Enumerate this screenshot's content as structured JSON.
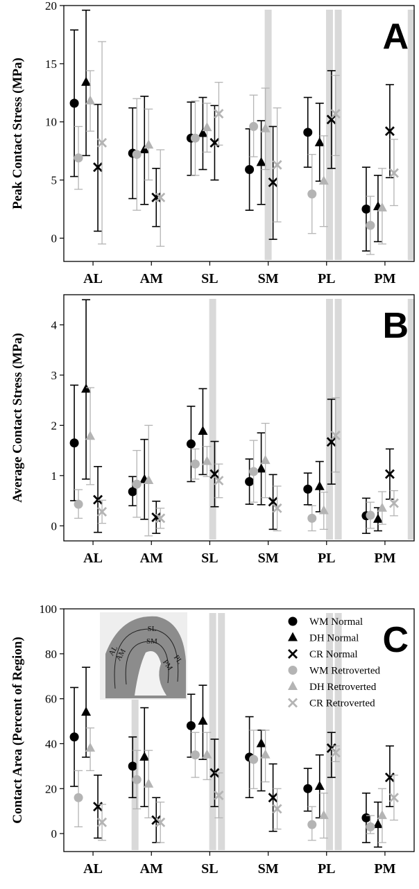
{
  "chart_data": [
    {
      "type": "scatter",
      "panel": "A",
      "ylabel": "Peak Contact Stress (MPa)",
      "categories": [
        "AL",
        "AM",
        "SL",
        "SM",
        "PL",
        "PM"
      ],
      "ylim": [
        -2,
        20
      ],
      "yticks": [
        0,
        5,
        10,
        15,
        20
      ],
      "significance_bars": [
        3,
        4.05,
        4.2,
        5.45
      ],
      "series": [
        {
          "name": "WM Normal",
          "marker": "circle",
          "color": "#000000",
          "values": [
            11.6,
            7.3,
            8.6,
            5.9,
            9.1,
            2.5
          ],
          "err_low": [
            5.3,
            3.4,
            5.4,
            2.4,
            6.1,
            -1.1
          ],
          "err_high": [
            17.9,
            11.2,
            11.7,
            9.4,
            12.1,
            6.1
          ]
        },
        {
          "name": "DH Normal",
          "marker": "triangle",
          "color": "#000000",
          "values": [
            13.4,
            7.6,
            9.0,
            6.5,
            8.2,
            2.7
          ],
          "err_low": [
            7.1,
            2.9,
            5.9,
            2.9,
            4.9,
            -0.3
          ],
          "err_high": [
            19.6,
            12.2,
            12.1,
            10.1,
            11.6,
            5.4
          ]
        },
        {
          "name": "CR Normal",
          "marker": "x",
          "color": "#000000",
          "values": [
            6.1,
            3.5,
            8.2,
            4.8,
            10.2,
            9.2
          ],
          "err_low": [
            0.6,
            1.0,
            5.0,
            -0.1,
            6.0,
            5.2
          ],
          "err_high": [
            11.5,
            6.0,
            11.4,
            9.6,
            14.4,
            13.2
          ]
        },
        {
          "name": "WM Retroverted",
          "marker": "circle",
          "color": "#b4b4b4",
          "values": [
            6.9,
            7.2,
            8.6,
            9.6,
            3.8,
            1.1
          ],
          "err_low": [
            4.2,
            2.4,
            5.4,
            7.0,
            0.4,
            -1.4
          ],
          "err_high": [
            9.6,
            12.0,
            11.8,
            12.3,
            7.2,
            3.6
          ]
        },
        {
          "name": "DH Retroverted",
          "marker": "triangle",
          "color": "#b4b4b4",
          "values": [
            11.8,
            8.0,
            9.5,
            9.4,
            4.9,
            2.6
          ],
          "err_low": [
            9.2,
            5.0,
            7.4,
            5.9,
            1.0,
            -0.5
          ],
          "err_high": [
            14.4,
            11.1,
            11.6,
            12.9,
            8.8,
            6.0
          ]
        },
        {
          "name": "CR Retroverted",
          "marker": "x",
          "color": "#b4b4b4",
          "values": [
            8.2,
            3.5,
            10.7,
            6.3,
            10.7,
            5.6
          ],
          "err_low": [
            -0.5,
            -0.7,
            8.0,
            1.4,
            7.1,
            2.8
          ],
          "err_high": [
            16.9,
            7.6,
            13.4,
            11.2,
            14.0,
            8.5
          ]
        }
      ]
    },
    {
      "type": "scatter",
      "panel": "B",
      "ylabel": "Average Contact Stress (MPa)",
      "categories": [
        "AL",
        "AM",
        "SL",
        "SM",
        "PL",
        "PM"
      ],
      "ylim": [
        -0.3,
        4.6
      ],
      "yticks": [
        0,
        1,
        2,
        3,
        4
      ],
      "significance_bars": [
        2.05,
        4.05,
        4.2,
        5.45
      ],
      "series": [
        {
          "name": "WM Normal",
          "marker": "circle",
          "color": "#000000",
          "values": [
            1.65,
            0.68,
            1.63,
            0.88,
            0.73,
            0.2
          ],
          "err_low": [
            0.5,
            0.4,
            0.88,
            0.43,
            0.42,
            -0.15
          ],
          "err_high": [
            2.8,
            0.98,
            2.38,
            1.33,
            1.05,
            0.55
          ]
        },
        {
          "name": "DH Normal",
          "marker": "triangle",
          "color": "#000000",
          "values": [
            2.72,
            0.92,
            1.88,
            1.13,
            0.78,
            0.13
          ],
          "err_low": [
            0.93,
            0.13,
            1.02,
            0.42,
            0.28,
            -0.1
          ],
          "err_high": [
            4.5,
            1.72,
            2.73,
            1.85,
            1.28,
            0.36
          ]
        },
        {
          "name": "CR Normal",
          "marker": "x",
          "color": "#000000",
          "values": [
            0.52,
            0.17,
            1.03,
            0.48,
            1.67,
            1.03
          ],
          "err_low": [
            -0.13,
            -0.15,
            0.38,
            -0.07,
            0.83,
            0.53
          ],
          "err_high": [
            1.18,
            0.49,
            1.68,
            1.02,
            2.52,
            1.53
          ]
        },
        {
          "name": "WM Retroverted",
          "marker": "circle",
          "color": "#b4b4b4",
          "values": [
            0.43,
            0.83,
            1.23,
            1.08,
            0.15,
            0.21
          ],
          "err_low": [
            0.15,
            0.17,
            0.93,
            0.47,
            -0.1,
            -0.05
          ],
          "err_high": [
            0.72,
            1.5,
            1.53,
            1.7,
            0.4,
            0.47
          ]
        },
        {
          "name": "DH Retroverted",
          "marker": "triangle",
          "color": "#b4b4b4",
          "values": [
            1.78,
            0.9,
            1.28,
            1.3,
            0.3,
            0.35
          ],
          "err_low": [
            0.82,
            -0.2,
            0.98,
            0.56,
            -0.07,
            0.03
          ],
          "err_high": [
            2.75,
            2.0,
            1.58,
            2.04,
            0.67,
            0.68
          ]
        },
        {
          "name": "CR Retroverted",
          "marker": "x",
          "color": "#b4b4b4",
          "values": [
            0.28,
            0.15,
            0.9,
            0.35,
            1.8,
            0.45
          ],
          "err_low": [
            0.05,
            -0.05,
            0.56,
            -0.1,
            1.07,
            0.2
          ],
          "err_high": [
            0.51,
            0.35,
            1.23,
            0.79,
            2.55,
            0.7
          ]
        }
      ]
    },
    {
      "type": "scatter",
      "panel": "C",
      "ylabel": "Contact Area (Percent of Region)",
      "categories": [
        "AL",
        "AM",
        "SL",
        "SM",
        "PL",
        "PM"
      ],
      "ylim": [
        -8,
        100
      ],
      "yticks": [
        0,
        20,
        40,
        60,
        80,
        100
      ],
      "significance_bars": [
        0.72,
        2.05,
        2.2,
        4.05,
        4.2
      ],
      "legend_position": "top-right",
      "inset_labels": [
        "SL",
        "SM",
        "AL",
        "AM",
        "PM",
        "PL"
      ],
      "series": [
        {
          "name": "WM Normal",
          "marker": "circle",
          "color": "#000000",
          "values": [
            43,
            30,
            48,
            34,
            20,
            7
          ],
          "err_low": [
            21,
            16,
            34,
            16,
            10,
            -4
          ],
          "err_high": [
            65,
            43,
            62,
            52,
            29,
            18
          ]
        },
        {
          "name": "DH Normal",
          "marker": "triangle",
          "color": "#000000",
          "values": [
            54,
            34,
            50,
            40,
            21,
            4
          ],
          "err_low": [
            34,
            12,
            33,
            19,
            7,
            -6
          ],
          "err_high": [
            74,
            56,
            66,
            46,
            35,
            14
          ]
        },
        {
          "name": "CR Normal",
          "marker": "x",
          "color": "#000000",
          "values": [
            12,
            6,
            27,
            16,
            38,
            25
          ],
          "err_low": [
            -2,
            -4,
            12,
            1,
            25,
            12
          ],
          "err_high": [
            26,
            16,
            42,
            31,
            45,
            39
          ]
        },
        {
          "name": "WM Retroverted",
          "marker": "circle",
          "color": "#b4b4b4",
          "values": [
            16,
            24,
            35,
            33,
            4,
            3
          ],
          "err_low": [
            3,
            11,
            25,
            20,
            -3,
            0
          ],
          "err_high": [
            28,
            37,
            45,
            46,
            12,
            8
          ]
        },
        {
          "name": "DH Retroverted",
          "marker": "triangle",
          "color": "#b4b4b4",
          "values": [
            38,
            22,
            35,
            35,
            8,
            8
          ],
          "err_low": [
            28,
            7,
            24,
            23,
            -2,
            -4
          ],
          "err_high": [
            47,
            37,
            45,
            46,
            18,
            20
          ]
        },
        {
          "name": "CR Retroverted",
          "marker": "x",
          "color": "#b4b4b4",
          "values": [
            5,
            5,
            17,
            11,
            36,
            16
          ],
          "err_low": [
            -3,
            -4,
            7,
            2,
            32,
            6
          ],
          "err_high": [
            13,
            14,
            27,
            20,
            39,
            26
          ]
        }
      ]
    }
  ]
}
